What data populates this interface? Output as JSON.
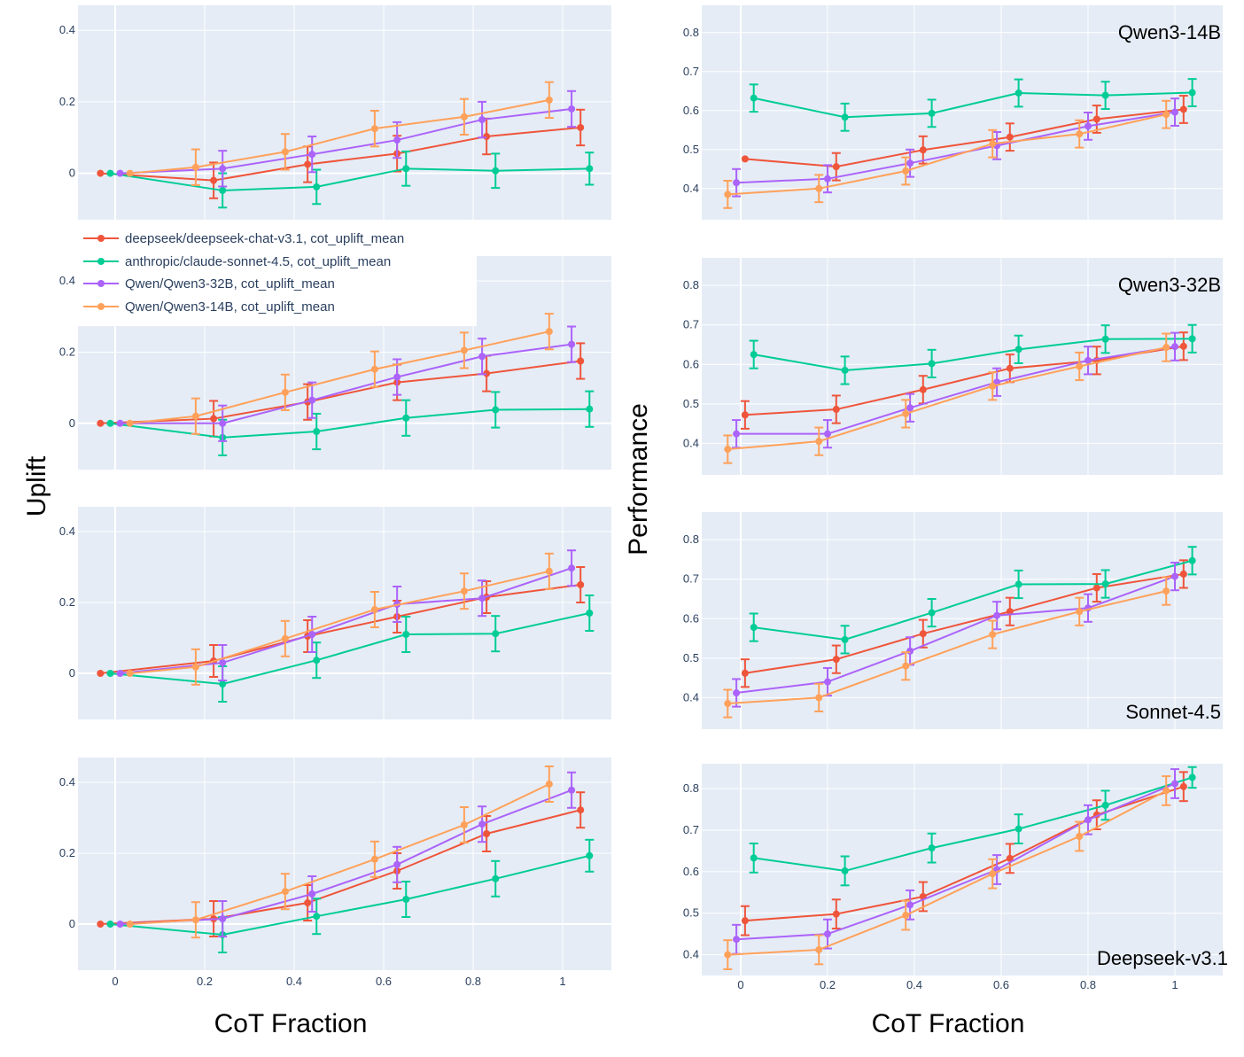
{
  "chart_data": {
    "type": "line",
    "x_title": "CoT Fraction",
    "left_y_title": "Uplift",
    "right_y_title": "Performance",
    "series_colors": [
      "#ef553b",
      "#00cc96",
      "#ab63fa",
      "#ffa15a"
    ],
    "legend": {
      "placement": "top-left",
      "entries": [
        "deepseek/deepseek-chat-v3.1, cot_uplift_mean",
        "anthropic/claude-sonnet-4.5, cot_uplift_mean",
        "Qwen/Qwen3-32B, cot_uplift_mean",
        "Qwen/Qwen3-14B, cot_uplift_mean"
      ]
    },
    "x": [
      0,
      0.2,
      0.4,
      0.6,
      0.8,
      1
    ],
    "x_ticks": [
      "0",
      "0.2",
      "0.4",
      "0.6",
      "0.8",
      "1"
    ],
    "uplift_panels": [
      {
        "title": "",
        "ylim": [
          -0.13,
          0.47
        ],
        "y_ticks": [
          0,
          0.2,
          0.4
        ],
        "y_tick_labels": [
          "0",
          "0.2",
          "0.4"
        ],
        "series": [
          {
            "values": [
              0,
              -0.02,
              0.025,
              0.055,
              0.103,
              0.128
            ],
            "errors": [
              0,
              0.05,
              0.05,
              0.05,
              0.05,
              0.05
            ]
          },
          {
            "values": [
              0,
              -0.048,
              -0.038,
              0.013,
              0.007,
              0.013
            ],
            "errors": [
              0,
              0.048,
              0.048,
              0.048,
              0.048,
              0.045
            ]
          },
          {
            "values": [
              0,
              0.013,
              0.053,
              0.093,
              0.15,
              0.18
            ],
            "errors": [
              0,
              0.05,
              0.05,
              0.05,
              0.05,
              0.05
            ]
          },
          {
            "values": [
              0,
              0.017,
              0.06,
              0.125,
              0.158,
              0.205
            ],
            "errors": [
              0,
              0.05,
              0.05,
              0.05,
              0.05,
              0.05
            ]
          }
        ]
      },
      {
        "title": "",
        "ylim": [
          -0.13,
          0.47
        ],
        "y_ticks": [
          0,
          0.2,
          0.4
        ],
        "y_tick_labels": [
          "0",
          "0.2",
          "0.4"
        ],
        "series": [
          {
            "values": [
              0,
              0.013,
              0.06,
              0.115,
              0.14,
              0.175
            ],
            "errors": [
              0,
              0.05,
              0.05,
              0.05,
              0.05,
              0.05
            ]
          },
          {
            "values": [
              0,
              -0.04,
              -0.023,
              0.015,
              0.038,
              0.04
            ],
            "errors": [
              0,
              0.05,
              0.05,
              0.05,
              0.05,
              0.05
            ]
          },
          {
            "values": [
              0,
              0,
              0.065,
              0.13,
              0.188,
              0.222
            ],
            "errors": [
              0,
              0.05,
              0.05,
              0.05,
              0.05,
              0.05
            ]
          },
          {
            "values": [
              0,
              0.02,
              0.087,
              0.152,
              0.205,
              0.258
            ],
            "errors": [
              0,
              0.05,
              0.05,
              0.05,
              0.05,
              0.05
            ]
          }
        ]
      },
      {
        "title": "",
        "ylim": [
          -0.13,
          0.47
        ],
        "y_ticks": [
          0,
          0.2,
          0.4
        ],
        "y_tick_labels": [
          "0",
          "0.2",
          "0.4"
        ],
        "series": [
          {
            "values": [
              0,
              0.035,
              0.105,
              0.16,
              0.215,
              0.25
            ],
            "errors": [
              0,
              0.045,
              0.045,
              0.045,
              0.045,
              0.05
            ]
          },
          {
            "values": [
              0,
              -0.03,
              0.037,
              0.11,
              0.112,
              0.17
            ],
            "errors": [
              0,
              0.05,
              0.05,
              0.05,
              0.05,
              0.05
            ]
          },
          {
            "values": [
              0,
              0.03,
              0.11,
              0.195,
              0.212,
              0.297
            ],
            "errors": [
              0,
              0.05,
              0.05,
              0.05,
              0.05,
              0.05
            ]
          },
          {
            "values": [
              0,
              0.018,
              0.098,
              0.18,
              0.232,
              0.288
            ],
            "errors": [
              0,
              0.05,
              0.05,
              0.05,
              0.05,
              0.05
            ]
          }
        ]
      },
      {
        "title": "",
        "ylim": [
          -0.13,
          0.47
        ],
        "y_ticks": [
          0,
          0.2,
          0.4
        ],
        "y_tick_labels": [
          "0",
          "0.2",
          "0.4"
        ],
        "series": [
          {
            "values": [
              0,
              0.015,
              0.06,
              0.15,
              0.255,
              0.322
            ],
            "errors": [
              0,
              0.05,
              0.05,
              0.05,
              0.05,
              0.05
            ]
          },
          {
            "values": [
              0,
              -0.03,
              0.022,
              0.07,
              0.128,
              0.193
            ],
            "errors": [
              0,
              0.05,
              0.05,
              0.05,
              0.05,
              0.045
            ]
          },
          {
            "values": [
              0,
              0.015,
              0.085,
              0.168,
              0.282,
              0.378
            ],
            "errors": [
              0,
              0.05,
              0.05,
              0.05,
              0.05,
              0.05
            ]
          },
          {
            "values": [
              0,
              0.012,
              0.092,
              0.183,
              0.28,
              0.395
            ],
            "errors": [
              0,
              0.05,
              0.05,
              0.05,
              0.05,
              0.05
            ]
          }
        ]
      }
    ],
    "performance_panels": [
      {
        "title": "Qwen3-14B",
        "title_position": "top-right",
        "ylim": [
          0.32,
          0.87
        ],
        "y_ticks": [
          0.4,
          0.5,
          0.6,
          0.7,
          0.8
        ],
        "y_tick_labels": [
          "0.4",
          "0.5",
          "0.6",
          "0.7",
          "0.8"
        ],
        "series": [
          {
            "values": [
              0.476,
              0.456,
              0.499,
              0.532,
              0.578,
              0.603
            ],
            "errors": [
              0,
              0.035,
              0.035,
              0.035,
              0.035,
              0.035
            ]
          },
          {
            "values": [
              0.632,
              0.583,
              0.593,
              0.645,
              0.639,
              0.646
            ],
            "errors": [
              0.035,
              0.035,
              0.035,
              0.035,
              0.035,
              0.035
            ]
          },
          {
            "values": [
              0.415,
              0.425,
              0.465,
              0.51,
              0.56,
              0.596
            ],
            "errors": [
              0.035,
              0.035,
              0.035,
              0.035,
              0.035,
              0.035
            ]
          },
          {
            "values": [
              0.385,
              0.4,
              0.445,
              0.515,
              0.54,
              0.59
            ],
            "errors": [
              0.035,
              0.035,
              0.035,
              0.035,
              0.035,
              0.035
            ]
          }
        ]
      },
      {
        "title": "Qwen3-32B",
        "title_position": "top-right",
        "ylim": [
          0.32,
          0.87
        ],
        "y_ticks": [
          0.4,
          0.5,
          0.6,
          0.7,
          0.8
        ],
        "y_tick_labels": [
          "0.4",
          "0.5",
          "0.6",
          "0.7",
          "0.8"
        ],
        "series": [
          {
            "values": [
              0.472,
              0.486,
              0.536,
              0.59,
              0.61,
              0.646
            ],
            "errors": [
              0.035,
              0.035,
              0.035,
              0.035,
              0.035,
              0.035
            ]
          },
          {
            "values": [
              0.625,
              0.585,
              0.602,
              0.638,
              0.664,
              0.665
            ],
            "errors": [
              0.035,
              0.035,
              0.035,
              0.035,
              0.035,
              0.035
            ]
          },
          {
            "values": [
              0.424,
              0.424,
              0.49,
              0.555,
              0.61,
              0.645
            ],
            "errors": [
              0.035,
              0.035,
              0.035,
              0.035,
              0.035,
              0.035
            ]
          },
          {
            "values": [
              0.385,
              0.405,
              0.475,
              0.545,
              0.595,
              0.643
            ],
            "errors": [
              0.035,
              0.035,
              0.035,
              0.035,
              0.035,
              0.035
            ]
          }
        ]
      },
      {
        "title": "Sonnet-4.5",
        "title_position": "bottom-right",
        "ylim": [
          0.32,
          0.87
        ],
        "y_ticks": [
          0.4,
          0.5,
          0.6,
          0.7,
          0.8
        ],
        "y_tick_labels": [
          "0.4",
          "0.5",
          "0.6",
          "0.7",
          "0.8"
        ],
        "series": [
          {
            "values": [
              0.462,
              0.497,
              0.562,
              0.618,
              0.678,
              0.713
            ],
            "errors": [
              0.035,
              0.035,
              0.035,
              0.035,
              0.035,
              0.035
            ]
          },
          {
            "values": [
              0.578,
              0.547,
              0.615,
              0.687,
              0.688,
              0.747
            ],
            "errors": [
              0.035,
              0.035,
              0.035,
              0.035,
              0.035,
              0.035
            ]
          },
          {
            "values": [
              0.412,
              0.44,
              0.518,
              0.608,
              0.627,
              0.707
            ],
            "errors": [
              0.035,
              0.035,
              0.035,
              0.035,
              0.035,
              0.035
            ]
          },
          {
            "values": [
              0.385,
              0.4,
              0.48,
              0.56,
              0.618,
              0.67
            ],
            "errors": [
              0.035,
              0.035,
              0.035,
              0.035,
              0.035,
              0.035
            ]
          }
        ]
      },
      {
        "title": "Deepseek-v3.1",
        "title_position": "bottom-right",
        "ylim": [
          0.35,
          0.86
        ],
        "y_ticks": [
          0.4,
          0.5,
          0.6,
          0.7,
          0.8
        ],
        "y_tick_labels": [
          "0.4",
          "0.5",
          "0.6",
          "0.7",
          "0.8"
        ],
        "series": [
          {
            "values": [
              0.482,
              0.498,
              0.54,
              0.632,
              0.737,
              0.805
            ],
            "errors": [
              0.035,
              0.035,
              0.035,
              0.035,
              0.035,
              0.035
            ]
          },
          {
            "values": [
              0.633,
              0.602,
              0.657,
              0.703,
              0.76,
              0.827
            ],
            "errors": [
              0.035,
              0.035,
              0.035,
              0.035,
              0.035,
              0.025
            ]
          },
          {
            "values": [
              0.437,
              0.45,
              0.52,
              0.605,
              0.725,
              0.812
            ],
            "errors": [
              0.035,
              0.035,
              0.035,
              0.035,
              0.035,
              0.035
            ]
          },
          {
            "values": [
              0.4,
              0.412,
              0.495,
              0.595,
              0.685,
              0.795
            ],
            "errors": [
              0.035,
              0.035,
              0.035,
              0.035,
              0.035,
              0.035
            ]
          }
        ]
      }
    ]
  }
}
